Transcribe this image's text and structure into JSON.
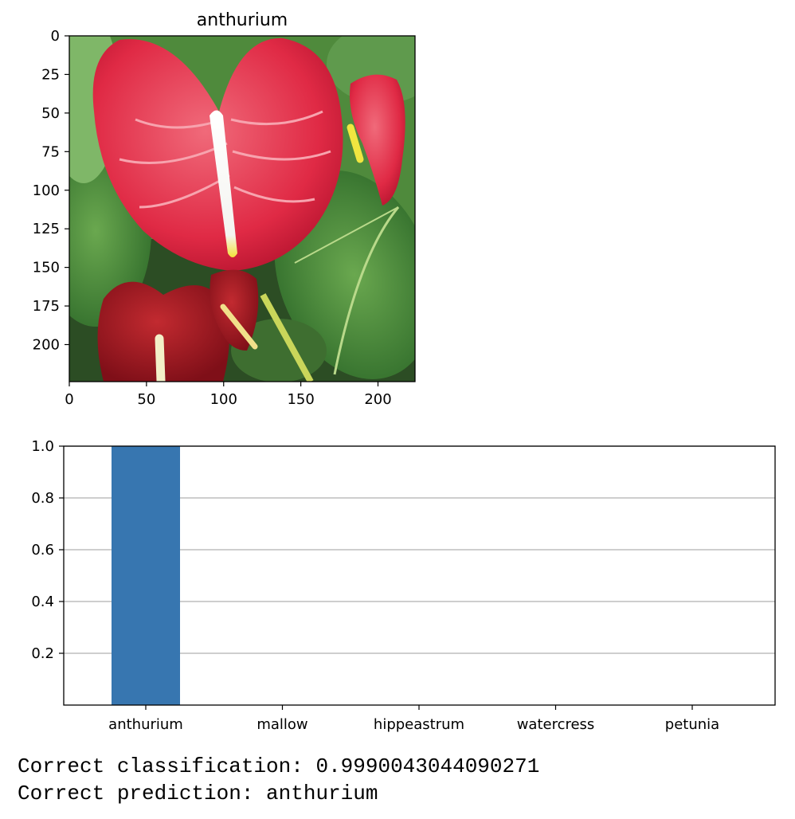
{
  "chart_data": [
    {
      "type": "image",
      "title": "anthurium",
      "xlim": [
        0,
        224
      ],
      "ylim": [
        224,
        0
      ],
      "xticks": [
        0,
        50,
        100,
        150,
        200
      ],
      "yticks": [
        0,
        25,
        50,
        75,
        100,
        125,
        150,
        175,
        200
      ],
      "xlabel": "",
      "ylabel": "",
      "image_content": "photo-of-red-anthurium-flowers"
    },
    {
      "type": "bar",
      "title": "",
      "xlabel": "",
      "ylabel": "",
      "categories": [
        "anthurium",
        "mallow",
        "hippeastrum",
        "watercress",
        "petunia"
      ],
      "values": [
        0.999,
        0.0005,
        0.0002,
        0.0001,
        0.0001
      ],
      "ylim": [
        0,
        1.0
      ],
      "yticks": [
        0.2,
        0.4,
        0.6,
        0.8,
        1.0
      ],
      "grid": "horizontal",
      "bar_color": "#3776b0"
    }
  ],
  "output": {
    "classification_line": "Correct classification: 0.9990043044090271",
    "prediction_line": "Correct prediction: anthurium"
  }
}
